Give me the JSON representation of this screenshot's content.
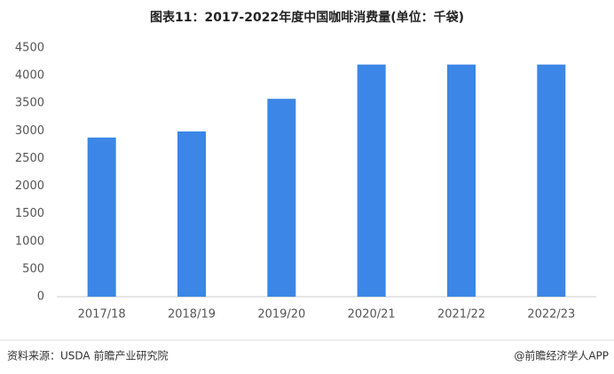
{
  "chart_data": {
    "type": "bar",
    "title": "图表11：2017-2022年度中国咖啡消费量(单位：千袋)",
    "categories": [
      "2017/18",
      "2018/19",
      "2019/20",
      "2020/21",
      "2021/22",
      "2022/23"
    ],
    "values": [
      2880,
      2990,
      3580,
      4200,
      4200,
      4200
    ],
    "color": "#3b86e6",
    "ylim": [
      0,
      4500
    ],
    "yticks": [
      0,
      500,
      1000,
      1500,
      2000,
      2500,
      3000,
      3500,
      4000,
      4500
    ],
    "grid": false,
    "source": "资料来源：USDA 前瞻产业研究院",
    "credit": "@前瞻经济学人APP"
  }
}
